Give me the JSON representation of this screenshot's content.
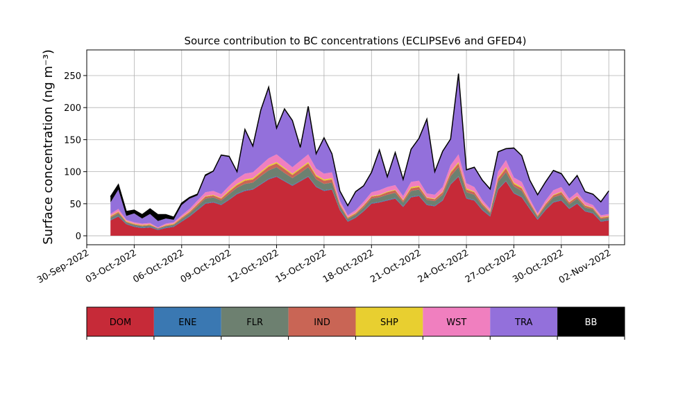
{
  "chart_data": {
    "type": "area",
    "stacked": true,
    "title": "Source contribution to BC concentrations (ECLIPSEv6 and GFED4)",
    "ylabel": "Surface concentration (ng m⁻³)",
    "xlabel": "",
    "x_range": [
      "2022-09-30",
      "2022-11-03"
    ],
    "ylim": [
      -14,
      290
    ],
    "yticks": [
      0,
      50,
      100,
      150,
      200,
      250
    ],
    "xticks": [
      "30-Sep-2022",
      "03-Oct-2022",
      "06-Oct-2022",
      "09-Oct-2022",
      "12-Oct-2022",
      "15-Oct-2022",
      "18-Oct-2022",
      "21-Oct-2022",
      "24-Oct-2022",
      "27-Oct-2022",
      "30-Oct-2022",
      "02-Nov-2022"
    ],
    "grid": true,
    "legend_position": "bottom",
    "total_outline_color": "#000000",
    "x": [
      "2022-10-01T12:00",
      "2022-10-02",
      "2022-10-02T12:00",
      "2022-10-03",
      "2022-10-03T12:00",
      "2022-10-04",
      "2022-10-04T12:00",
      "2022-10-05",
      "2022-10-05T12:00",
      "2022-10-06",
      "2022-10-06T12:00",
      "2022-10-07",
      "2022-10-07T12:00",
      "2022-10-08",
      "2022-10-08T12:00",
      "2022-10-09",
      "2022-10-09T12:00",
      "2022-10-10",
      "2022-10-10T12:00",
      "2022-10-11",
      "2022-10-11T12:00",
      "2022-10-12",
      "2022-10-12T12:00",
      "2022-10-13",
      "2022-10-13T12:00",
      "2022-10-14",
      "2022-10-14T12:00",
      "2022-10-15",
      "2022-10-15T12:00",
      "2022-10-16",
      "2022-10-16T12:00",
      "2022-10-17",
      "2022-10-17T12:00",
      "2022-10-18",
      "2022-10-18T12:00",
      "2022-10-19",
      "2022-10-19T12:00",
      "2022-10-20",
      "2022-10-20T12:00",
      "2022-10-21",
      "2022-10-21T12:00",
      "2022-10-22",
      "2022-10-22T12:00",
      "2022-10-23",
      "2022-10-23T12:00",
      "2022-10-24",
      "2022-10-24T12:00",
      "2022-10-25",
      "2022-10-25T12:00",
      "2022-10-26",
      "2022-10-26T12:00",
      "2022-10-27",
      "2022-10-27T12:00",
      "2022-10-28",
      "2022-10-28T12:00",
      "2022-10-29",
      "2022-10-29T12:00",
      "2022-10-30",
      "2022-10-30T12:00",
      "2022-10-31",
      "2022-10-31T12:00",
      "2022-11-01",
      "2022-11-01T12:00",
      "2022-11-02"
    ],
    "series": [
      {
        "name": "DOM",
        "color": "#c62a38",
        "values": [
          24,
          30,
          18,
          14,
          12,
          13,
          9,
          12,
          14,
          22,
          30,
          40,
          50,
          52,
          48,
          56,
          65,
          70,
          72,
          80,
          88,
          92,
          85,
          78,
          85,
          92,
          76,
          70,
          72,
          40,
          22,
          28,
          38,
          50,
          52,
          55,
          58,
          45,
          60,
          62,
          48,
          46,
          55,
          80,
          92,
          58,
          55,
          40,
          30,
          72,
          85,
          66,
          60,
          42,
          25,
          40,
          52,
          55,
          42,
          50,
          38,
          35,
          22,
          24
        ]
      },
      {
        "name": "ENE",
        "color": "#3a78b2",
        "values": [
          1,
          1,
          1,
          1,
          1,
          1,
          1,
          1,
          1,
          1,
          1,
          1,
          1,
          1,
          1,
          1,
          1,
          1,
          1,
          1,
          1,
          1,
          1,
          1,
          1,
          1,
          1,
          1,
          1,
          1,
          1,
          1,
          1,
          1,
          1,
          1,
          1,
          1,
          1,
          1,
          1,
          1,
          1,
          1,
          1,
          1,
          1,
          1,
          1,
          1,
          1,
          1,
          1,
          1,
          1,
          1,
          1,
          1,
          1,
          1,
          1,
          1,
          1,
          1
        ]
      },
      {
        "name": "FLR",
        "color": "#6d8070",
        "values": [
          3,
          4,
          2,
          2,
          2,
          2,
          1,
          2,
          2,
          3,
          4,
          5,
          7,
          7,
          6,
          8,
          9,
          10,
          10,
          12,
          13,
          14,
          12,
          11,
          12,
          14,
          11,
          10,
          10,
          5,
          3,
          4,
          5,
          7,
          7,
          8,
          8,
          6,
          9,
          9,
          7,
          7,
          8,
          12,
          14,
          9,
          8,
          6,
          4,
          11,
          13,
          10,
          9,
          6,
          3,
          5,
          7,
          8,
          6,
          7,
          5,
          5,
          3,
          3
        ]
      },
      {
        "name": "IND",
        "color": "#c96555",
        "values": [
          2,
          2,
          1,
          1,
          1,
          1,
          1,
          1,
          1,
          2,
          2,
          3,
          3,
          3,
          3,
          4,
          4,
          5,
          5,
          5,
          6,
          6,
          6,
          5,
          6,
          6,
          5,
          5,
          5,
          3,
          2,
          2,
          3,
          3,
          3,
          4,
          4,
          3,
          4,
          4,
          3,
          3,
          4,
          5,
          6,
          4,
          4,
          3,
          2,
          5,
          6,
          4,
          4,
          3,
          2,
          3,
          3,
          4,
          3,
          3,
          3,
          2,
          2,
          2
        ]
      },
      {
        "name": "SHP",
        "color": "#e8cf30",
        "values": [
          1,
          1,
          1,
          1,
          1,
          1,
          0,
          1,
          1,
          1,
          1,
          1,
          1,
          1,
          1,
          2,
          2,
          2,
          2,
          2,
          2,
          2,
          2,
          2,
          2,
          2,
          2,
          2,
          2,
          1,
          1,
          1,
          1,
          1,
          1,
          1,
          1,
          1,
          2,
          2,
          1,
          1,
          1,
          2,
          2,
          2,
          1,
          1,
          1,
          2,
          2,
          2,
          2,
          1,
          1,
          1,
          1,
          1,
          1,
          1,
          1,
          1,
          1,
          1
        ]
      },
      {
        "name": "WST",
        "color": "#f07fbf",
        "values": [
          3,
          4,
          2,
          2,
          2,
          2,
          1,
          2,
          2,
          3,
          4,
          5,
          6,
          6,
          6,
          7,
          8,
          9,
          9,
          10,
          11,
          12,
          11,
          10,
          11,
          12,
          10,
          9,
          9,
          5,
          3,
          4,
          5,
          6,
          7,
          7,
          7,
          6,
          8,
          8,
          6,
          6,
          7,
          10,
          12,
          8,
          7,
          5,
          4,
          9,
          11,
          8,
          8,
          5,
          3,
          5,
          7,
          7,
          5,
          6,
          5,
          4,
          3,
          3
        ]
      },
      {
        "name": "TRA",
        "color": "#9370db",
        "values": [
          18,
          30,
          6,
          14,
          8,
          14,
          10,
          8,
          4,
          16,
          16,
          8,
          25,
          30,
          60,
          45,
          10,
          68,
          40,
          85,
          110,
          40,
          80,
          72,
          20,
          74,
          22,
          55,
          28,
          14,
          14,
          28,
          24,
          30,
          62,
          15,
          50,
          25,
          50,
          65,
          115,
          35,
          55,
          40,
          125,
          20,
          30,
          30,
          30,
          30,
          17,
          45,
          40,
          28,
          28,
          28,
          30,
          20,
          20,
          25,
          15,
          16,
          20,
          35
        ]
      },
      {
        "name": "BB",
        "color": "#000000",
        "values": [
          9,
          8,
          7,
          5,
          6,
          8,
          10,
          6,
          4,
          3,
          2,
          2,
          2,
          1,
          1,
          1,
          1,
          1,
          1,
          1,
          1,
          1,
          1,
          1,
          1,
          1,
          1,
          1,
          1,
          1,
          1,
          1,
          1,
          1,
          1,
          1,
          1,
          1,
          1,
          1,
          1,
          1,
          1,
          1,
          1,
          1,
          1,
          1,
          1,
          1,
          1,
          1,
          1,
          1,
          1,
          1,
          1,
          1,
          1,
          1,
          1,
          1,
          1,
          1
        ]
      }
    ]
  }
}
